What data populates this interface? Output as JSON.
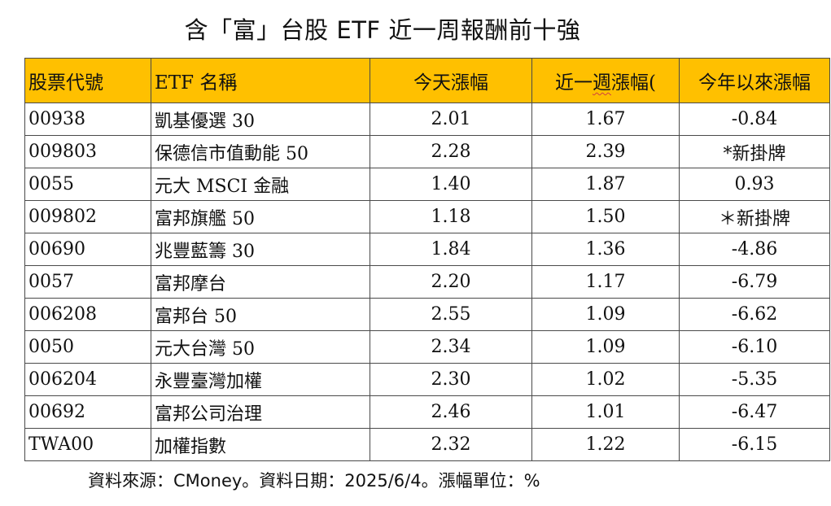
{
  "title": "含「富」台股 ETF 近一周報酬前十強",
  "table": {
    "headers": {
      "code": "股票代號",
      "name": "ETF 名稱",
      "today": "今天漲幅",
      "week_prefix": "近一",
      "week_underlined": "週",
      "week_suffix": "漲幅(",
      "ytd": "今年以來漲幅"
    },
    "header_color": "#FFC000",
    "rows": [
      {
        "code": "00938",
        "name": "凱基優選 30",
        "today": "2.01",
        "week": "1.67",
        "ytd": "-0.84"
      },
      {
        "code": "009803",
        "name": "保德信市值動能 50",
        "today": "2.28",
        "week": "2.39",
        "ytd": "*新掛牌"
      },
      {
        "code": "0055",
        "name": "元大 MSCI 金融",
        "today": "1.40",
        "week": "1.87",
        "ytd": "0.93"
      },
      {
        "code": "009802",
        "name": "富邦旗艦 50",
        "today": "1.18",
        "week": "1.50",
        "ytd": "＊新掛牌"
      },
      {
        "code": "00690",
        "name": "兆豐藍籌 30",
        "today": "1.84",
        "week": "1.36",
        "ytd": "-4.86"
      },
      {
        "code": "0057",
        "name": "富邦摩台",
        "today": "2.20",
        "week": "1.17",
        "ytd": "-6.79"
      },
      {
        "code": "006208",
        "name": "富邦台 50",
        "today": "2.55",
        "week": "1.09",
        "ytd": "-6.62"
      },
      {
        "code": "0050",
        "name": "元大台灣 50",
        "today": "2.34",
        "week": "1.09",
        "ytd": "-6.10"
      },
      {
        "code": "006204",
        "name": "永豐臺灣加權",
        "today": "2.30",
        "week": "1.02",
        "ytd": "-5.35"
      },
      {
        "code": "00692",
        "name": "富邦公司治理",
        "today": "2.46",
        "week": "1.01",
        "ytd": "-6.47"
      },
      {
        "code": "TWA00",
        "name": "加權指數",
        "today": "2.32",
        "week": "1.22",
        "ytd": "-6.15"
      }
    ]
  },
  "footer": "資料來源：CMoney。資料日期：2025/6/4。漲幅單位：%"
}
